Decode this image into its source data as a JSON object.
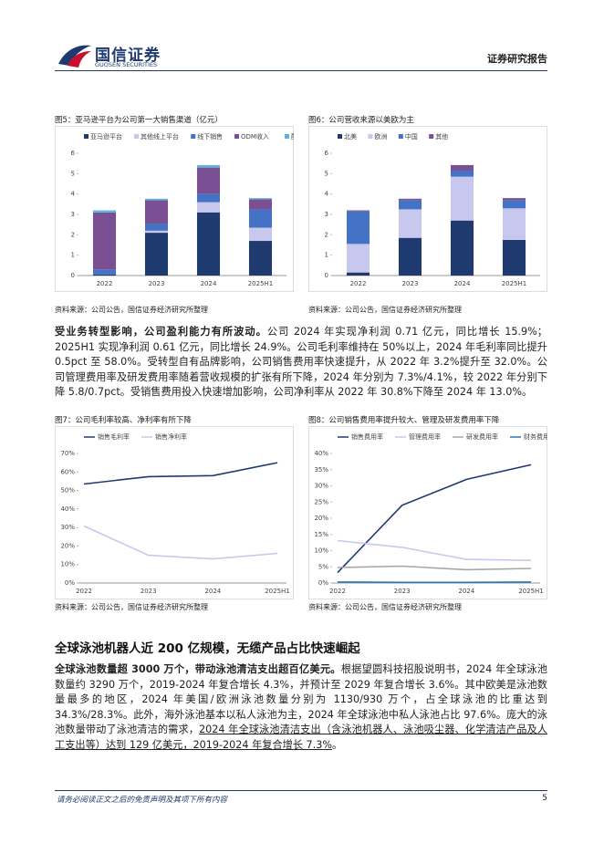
{
  "header": {
    "logo_cn": "国信证券",
    "logo_en": "GUOSEN SECURITIES",
    "report_type": "证券研究报告"
  },
  "chart_data": [
    {
      "type": "bar",
      "stacked": true,
      "title": "图5：亚马逊平台为公司第一大销售渠道（亿元）",
      "source": "资料来源：公司公告，国信证券经济研究所整理",
      "categories": [
        "2022",
        "2023",
        "2024",
        "2025H1"
      ],
      "series": [
        {
          "name": "亚马逊平台",
          "color": "#1f3a6e",
          "values": [
            0.05,
            2.1,
            3.1,
            1.7
          ]
        },
        {
          "name": "其他线上平台",
          "color": "#c8c8ee",
          "values": [
            0,
            0.1,
            0.5,
            0.65
          ]
        },
        {
          "name": "线下销售",
          "color": "#4472c4",
          "values": [
            0.25,
            0.35,
            0.4,
            0.9
          ]
        },
        {
          "name": "ODM收入",
          "color": "#7a4f93",
          "values": [
            2.8,
            1.15,
            1.3,
            0.5
          ]
        },
        {
          "name": "配件",
          "color": "#5bb5e0",
          "values": [
            0.1,
            0.07,
            0.12,
            0.05
          ]
        }
      ],
      "ylim": [
        0,
        6
      ],
      "yticks": [
        0,
        1,
        2,
        3,
        4,
        5,
        6
      ]
    },
    {
      "type": "bar",
      "stacked": true,
      "title": "图6：公司营收来源以美欧为主",
      "source": "资料来源：公司公告，国信证券经济研究所整理",
      "categories": [
        "2022",
        "2023",
        "2024",
        "2025H1"
      ],
      "series": [
        {
          "name": "北美",
          "color": "#1f3a6e",
          "values": [
            0.15,
            1.85,
            2.7,
            1.75
          ]
        },
        {
          "name": "欧洲",
          "color": "#c8c8ee",
          "values": [
            1.4,
            1.4,
            2.15,
            1.55
          ]
        },
        {
          "name": "中国",
          "color": "#4472c4",
          "values": [
            1.6,
            0.45,
            0.3,
            0.4
          ]
        },
        {
          "name": "其他",
          "color": "#7a4f93",
          "values": [
            0.05,
            0.07,
            0.27,
            0.1
          ]
        }
      ],
      "ylim": [
        0,
        6
      ],
      "yticks": [
        0,
        1,
        2,
        3,
        4,
        5,
        6
      ]
    },
    {
      "type": "line",
      "title": "图7：公司毛利率较高、净利率有所下降",
      "source": "资料来源：公司公告，国信证券经济研究所整理",
      "categories": [
        "2022",
        "2023",
        "2024",
        "2025H1"
      ],
      "series": [
        {
          "name": "销售毛利率",
          "color": "#1f3a6e",
          "values": [
            53.5,
            57.5,
            58.0,
            65.0
          ]
        },
        {
          "name": "销售净利率",
          "color": "#c8c8ee",
          "values": [
            30.8,
            15.0,
            13.0,
            16.0
          ]
        }
      ],
      "ylim": [
        0,
        70
      ],
      "yticks": [
        {
          "value": 0,
          "label": "0%"
        },
        {
          "value": 10,
          "label": "10%"
        },
        {
          "value": 20,
          "label": "20%"
        },
        {
          "value": 30,
          "label": "30%"
        },
        {
          "value": 40,
          "label": "40%"
        },
        {
          "value": 50,
          "label": "50%"
        },
        {
          "value": 60,
          "label": "60%"
        },
        {
          "value": 70,
          "label": "70%"
        }
      ]
    },
    {
      "type": "line",
      "title": "图8：公司销售费用率提升较大、管理及研发费用率下降",
      "source": "资料来源：公司公告，国信证券经济研究所整理",
      "categories": [
        "2022",
        "2023",
        "2024",
        "2025H1"
      ],
      "series": [
        {
          "name": "销售费用率",
          "color": "#1f3a6e",
          "values": [
            3.2,
            24.0,
            32.0,
            36.5
          ]
        },
        {
          "name": "管理费用率",
          "color": "#c8c8ee",
          "values": [
            13.1,
            11.0,
            7.3,
            7.0
          ]
        },
        {
          "name": "研发费用率",
          "color": "#a6a6a6",
          "values": [
            4.8,
            5.2,
            4.1,
            4.5
          ]
        },
        {
          "name": "财务费用率",
          "color": "#2e75b6",
          "values": [
            0.3,
            0.2,
            0.2,
            0.3
          ]
        }
      ],
      "ylim": [
        0,
        40
      ],
      "yticks": [
        {
          "value": 0,
          "label": "0%"
        },
        {
          "value": 5,
          "label": "5%"
        },
        {
          "value": 10,
          "label": "10%"
        },
        {
          "value": 15,
          "label": "15%"
        },
        {
          "value": 20,
          "label": "20%"
        },
        {
          "value": 25,
          "label": "25%"
        },
        {
          "value": 30,
          "label": "30%"
        },
        {
          "value": 35,
          "label": "35%"
        },
        {
          "value": 40,
          "label": "40%"
        }
      ]
    }
  ],
  "paragraphs": [
    {
      "lead": "受业务转型影响，公司盈利能力有所波动。",
      "text": "公司 2024 年实现净利润 0.71 亿元，同比增长 15.9%；2025H1 实现净利润 0.61 亿元，同比增长 24.9%。公司毛利率维持在 50%以上，2024 年毛利率同比提升 0.5pct 至 58.0%。受转型自有品牌影响，公司销售费用率快速提升，从 2022 年 3.2%提升至 32.0%。公司管理费用率及研发费用率随着营收规模的扩张有所下降，2024 年分别为 7.3%/4.1%，较 2022 年分别下降 5.8/0.7pct。受销售费用投入快速增加影响，公司净利率从 2022 年 30.8%下降至 2024 年 13.0%。"
    },
    {
      "lead": "全球泳池数量超 3000 万个，带动泳池清洁支出超百亿美元。",
      "text": "根据望圆科技招股说明书，2024 年全球泳池数量约 3290 万个，2019-2024 年复合增长 4.3%，并预计至 2029 年复合增长 3.6%。其中欧美是泳池数量最多的地区，2024 年美国/欧洲泳池数量分别为 1130/930 万个，占全球泳池的比重达到 34.3%/28.3%。此外，海外泳池基本以私人泳池为主，2024 年全球泳池中私人泳池占比 97.6%。庞大的泳池数量带动了泳池清洁的需求，",
      "underlined": "2024 年全球泳池清洁支出（含泳池机器人、泳池吸尘器、化学清洁产品及人工支出等）达到 129 亿美元，2019-2024 年复合增长 7.3%",
      "tail": "。"
    }
  ],
  "section_heading": "全球泳池机器人近 200 亿规模，无缆产品占比快速崛起",
  "footer": {
    "disclaimer": "请务必阅读正文之后的免责声明及其项下所有内容",
    "page": 5
  }
}
